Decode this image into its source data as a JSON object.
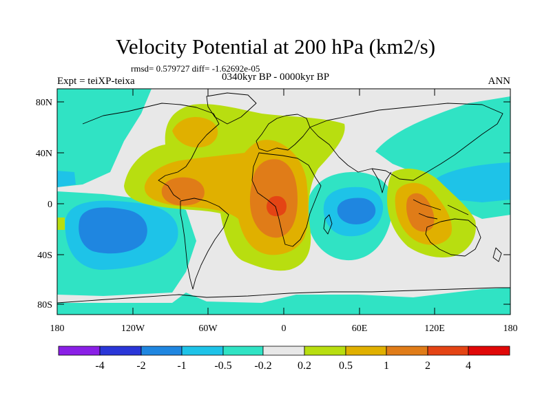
{
  "title": "Velocity Potential at 200 hPa (km2/s)",
  "stats_line": "rmsd= 0.579727 diff= -1.62692e-05",
  "experiment": "Expt = teiXP-teixa",
  "period": "0340kyr BP - 0000kyr BP",
  "season": "ANN",
  "map": {
    "lat_ticks": [
      "80N",
      "40N",
      "0",
      "40S",
      "80S"
    ],
    "lon_ticks": [
      "180",
      "120W",
      "60W",
      "0",
      "60E",
      "120E",
      "180"
    ]
  },
  "colorbar": {
    "labels": [
      "-4",
      "-2",
      "-1",
      "-0.5",
      "-0.2",
      "0.2",
      "0.5",
      "1",
      "2",
      "4"
    ],
    "colors": [
      "#8a1fe6",
      "#2a36d8",
      "#1f86e0",
      "#1ec3e8",
      "#30e3c4",
      "#e8e8e8",
      "#b8de10",
      "#e0b000",
      "#e07c18",
      "#e44414",
      "#e00808"
    ]
  },
  "colors": {
    "neutral": "#e8e8e8",
    "cyan": "#30e3c4",
    "lightblue": "#1ec3e8",
    "blue": "#1f86e0",
    "lime": "#b8de10",
    "gold": "#e0b000",
    "orange": "#e07c18",
    "red": "#e44414"
  }
}
